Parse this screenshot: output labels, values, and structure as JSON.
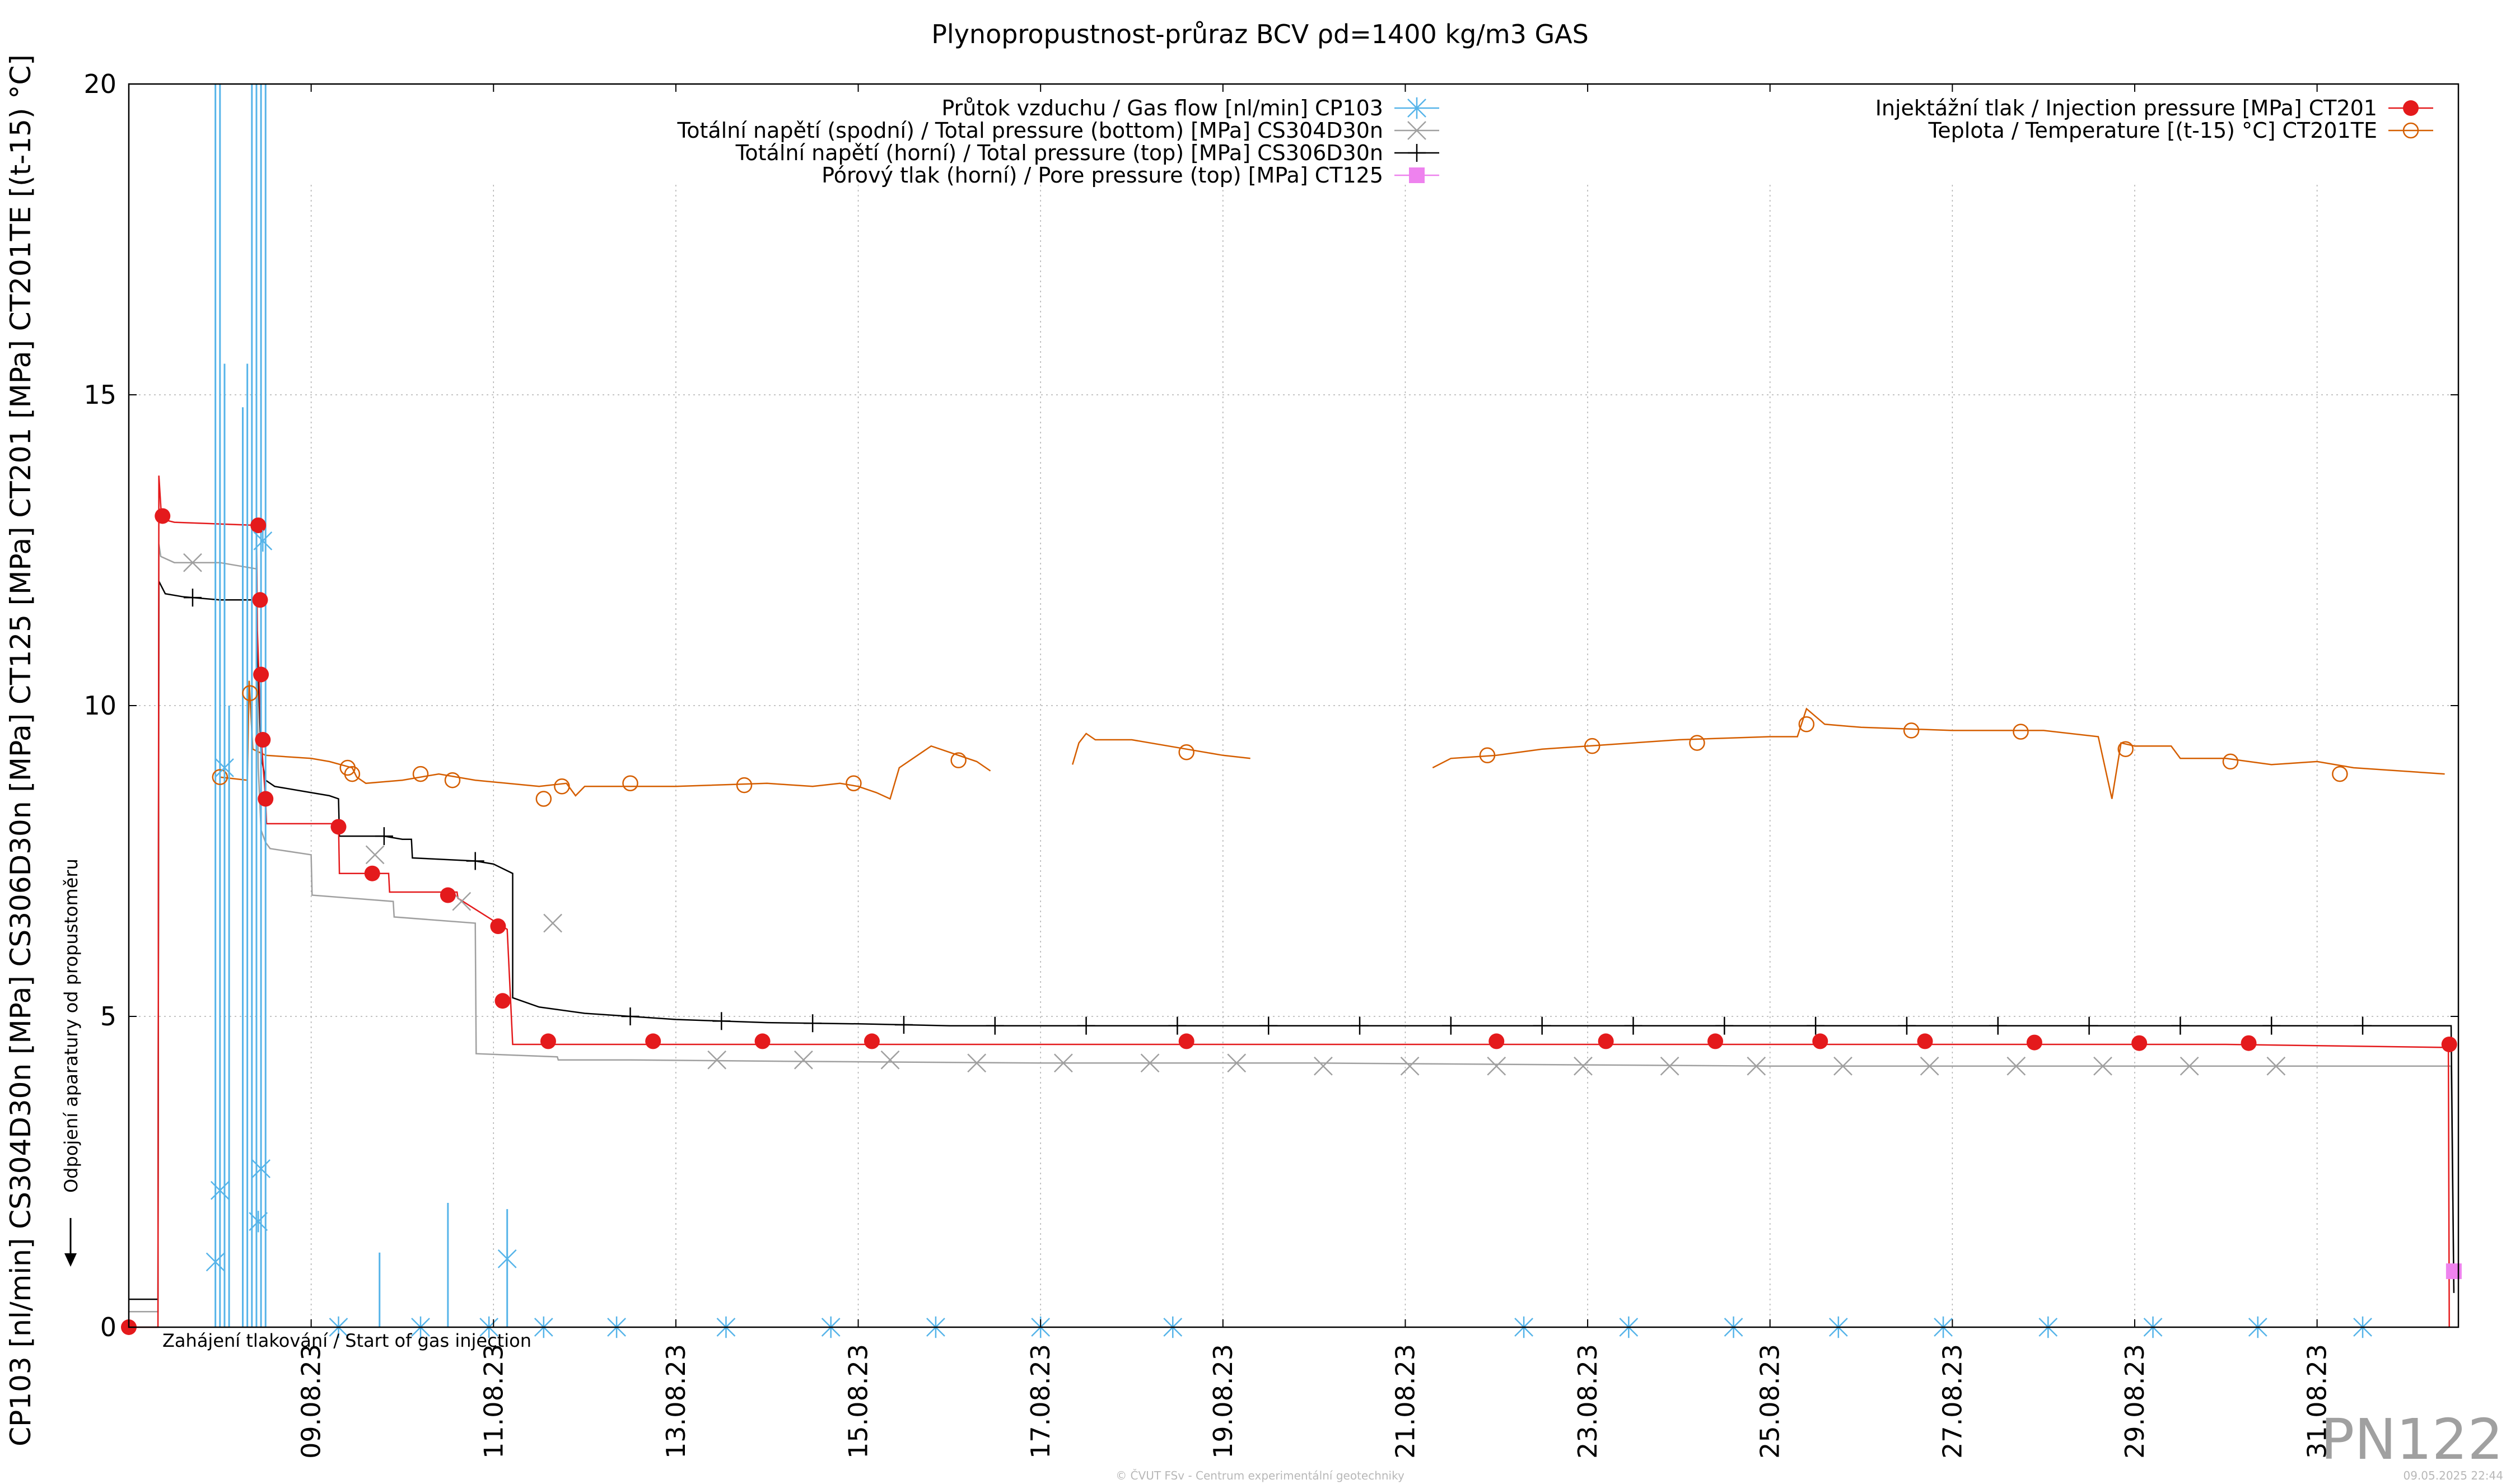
{
  "chart_data": {
    "type": "line",
    "title": "Plynopropustnost-průraz BCV ρd=1400 kg/m3 GAS",
    "ylabel": "CP103 [nl/min] CS304D30n [MPa] CS306D30n [MPa] CT125 [MPa] CT201 [MPa] CT201TE [(t-15) °C]",
    "ylim": [
      0,
      20
    ],
    "xlim": [
      7.0,
      32.55
    ],
    "yticks": [
      0,
      5,
      10,
      15,
      20
    ],
    "xticks": [
      {
        "label": "09.08.23",
        "day": 9
      },
      {
        "label": "11.08.23",
        "day": 11
      },
      {
        "label": "13.08.23",
        "day": 13
      },
      {
        "label": "15.08.23",
        "day": 15
      },
      {
        "label": "17.08.23",
        "day": 17
      },
      {
        "label": "19.08.23",
        "day": 19
      },
      {
        "label": "21.08.23",
        "day": 21
      },
      {
        "label": "23.08.23",
        "day": 23
      },
      {
        "label": "25.08.23",
        "day": 25
      },
      {
        "label": "27.08.23",
        "day": 27
      },
      {
        "label": "29.08.23",
        "day": 29
      },
      {
        "label": "31.08.23",
        "day": 31
      }
    ],
    "grid": true,
    "legend_left": [
      {
        "name": "Průtok vzduchu / Gas flow [nl/min] CP103",
        "color": "#56b4e9",
        "marker": "asterisk"
      },
      {
        "name": "Totální napětí (spodní) / Total pressure (bottom) [MPa] CS304D30n",
        "color": "#a0a0a0",
        "marker": "cross"
      },
      {
        "name": "Totální napětí (horní) / Total pressure (top) [MPa] CS306D30n",
        "color": "#000000",
        "marker": "plus"
      },
      {
        "name": "Pórový tlak (horní) / Pore pressure (top) [MPa] CT125",
        "color": "#ee82ee",
        "marker": "square"
      }
    ],
    "legend_right": [
      {
        "name": "Injektážní tlak / Injection pressure [MPa] CT201",
        "color": "#e41a1c",
        "marker": "filled-circle"
      },
      {
        "name": "Teplota / Temperature [(t-15) °C] CT201TE",
        "color": "#d55e00",
        "marker": "open-circle"
      }
    ],
    "annotations": {
      "vertical": "Odpojení aparatury od propustoměru",
      "bottom": "Zahájení tlakování / Start of gas injection"
    },
    "series": [
      {
        "id": "CT201TE",
        "name": "Teplota / Temperature [(t-15) °C] CT201TE",
        "color": "#d55e00",
        "x": [
          8.0,
          8.3,
          8.32,
          8.36,
          8.5,
          9.0,
          9.2,
          9.45,
          9.5,
          9.6,
          10.0,
          10.4,
          10.8,
          11.5,
          11.8,
          11.9,
          12.0,
          12.5,
          13.0,
          14.0,
          14.5,
          14.8,
          15.0,
          15.2,
          15.35,
          15.45,
          15.8,
          16.0,
          16.3,
          16.45
        ],
        "y": [
          8.85,
          8.8,
          10.4,
          9.3,
          9.2,
          9.15,
          9.1,
          9.0,
          8.85,
          8.75,
          8.8,
          8.9,
          8.8,
          8.7,
          8.75,
          8.55,
          8.7,
          8.7,
          8.7,
          8.75,
          8.7,
          8.75,
          8.7,
          8.6,
          8.5,
          9.0,
          9.35,
          9.25,
          9.1,
          8.95
        ],
        "markers": [
          [
            8.0,
            8.85
          ],
          [
            8.33,
            10.2
          ],
          [
            9.4,
            9.0
          ],
          [
            9.45,
            8.9
          ],
          [
            10.2,
            8.9
          ],
          [
            10.55,
            8.8
          ],
          [
            11.55,
            8.5
          ],
          [
            11.75,
            8.7
          ],
          [
            12.5,
            8.75
          ],
          [
            13.75,
            8.72
          ],
          [
            14.95,
            8.75
          ],
          [
            16.1,
            9.12
          ]
        ]
      },
      {
        "id": "CT201TE_b",
        "name": "",
        "color": "#d55e00",
        "x": [
          17.35,
          17.42,
          17.5,
          17.6,
          18.0,
          18.6,
          19.0,
          19.3
        ],
        "y": [
          9.05,
          9.4,
          9.55,
          9.45,
          9.45,
          9.3,
          9.2,
          9.15
        ],
        "markers": [
          [
            18.6,
            9.25
          ]
        ]
      },
      {
        "id": "CT201TE_c",
        "name": "",
        "color": "#d55e00",
        "x": [
          21.3,
          21.5,
          22.0,
          22.5,
          23.0,
          24.0,
          25.0,
          25.3,
          25.4,
          25.6,
          26.0,
          27.0,
          28.0,
          28.6,
          28.75,
          28.85,
          29.0,
          29.4,
          29.5,
          30.0,
          30.5,
          31.0,
          31.4,
          32.4
        ],
        "y": [
          9.0,
          9.15,
          9.2,
          9.3,
          9.35,
          9.45,
          9.5,
          9.5,
          9.95,
          9.7,
          9.65,
          9.6,
          9.6,
          9.5,
          8.5,
          9.4,
          9.35,
          9.35,
          9.15,
          9.15,
          9.05,
          9.1,
          9.0,
          8.9
        ],
        "markers": [
          [
            21.9,
            9.2
          ],
          [
            23.05,
            9.35
          ],
          [
            24.2,
            9.4
          ],
          [
            25.4,
            9.7
          ],
          [
            26.55,
            9.6
          ],
          [
            27.75,
            9.58
          ],
          [
            28.9,
            9.3
          ],
          [
            30.05,
            9.1
          ],
          [
            31.25,
            8.9
          ]
        ]
      },
      {
        "id": "CS304D30n",
        "name": "Totální napětí (spodní) / Total pressure (bottom) [MPa] CS304D30n",
        "color": "#a0a0a0",
        "x": [
          7.0,
          7.32,
          7.33,
          7.35,
          7.5,
          8.0,
          8.4,
          8.42,
          8.45,
          8.5,
          8.55,
          9.0,
          9.01,
          9.9,
          9.91,
          10.8,
          10.81,
          11.7,
          11.71,
          12.0,
          12.5,
          14.0,
          17.0,
          20.0,
          25.0,
          30.0,
          32.47,
          32.5
        ],
        "y": [
          0.25,
          0.25,
          12.6,
          12.4,
          12.3,
          12.3,
          12.2,
          9.0,
          8.0,
          7.8,
          7.7,
          7.6,
          6.95,
          6.85,
          6.6,
          6.5,
          4.4,
          4.35,
          4.3,
          4.3,
          4.3,
          4.28,
          4.25,
          4.25,
          4.2,
          4.2,
          4.2,
          0.6
        ],
        "markers": [
          [
            7.7,
            12.3
          ],
          [
            9.7,
            7.6
          ],
          [
            10.65,
            6.85
          ],
          [
            11.65,
            6.5
          ],
          [
            13.45,
            4.3
          ],
          [
            14.4,
            4.3
          ],
          [
            15.35,
            4.3
          ],
          [
            16.3,
            4.25
          ],
          [
            17.25,
            4.25
          ],
          [
            18.2,
            4.25
          ],
          [
            19.15,
            4.25
          ],
          [
            20.1,
            4.2
          ],
          [
            21.05,
            4.2
          ],
          [
            22.0,
            4.2
          ],
          [
            22.95,
            4.2
          ],
          [
            23.9,
            4.2
          ],
          [
            24.85,
            4.2
          ],
          [
            25.8,
            4.2
          ],
          [
            26.75,
            4.2
          ],
          [
            27.7,
            4.2
          ],
          [
            28.65,
            4.2
          ],
          [
            29.6,
            4.2
          ],
          [
            30.55,
            4.2
          ]
        ]
      },
      {
        "id": "CS306D30n",
        "name": "Totální napětí (horní) / Total pressure (top) [MPa] CS306D30n",
        "color": "#000000",
        "x": [
          7.0,
          7.32,
          7.33,
          7.4,
          7.6,
          8.0,
          8.4,
          8.42,
          8.45,
          8.5,
          8.6,
          9.0,
          9.2,
          9.3,
          9.31,
          9.8,
          10.0,
          10.1,
          10.11,
          10.8,
          11.0,
          11.21,
          11.21,
          11.5,
          12.0,
          13.0,
          14.0,
          15.0,
          16.0,
          18.0,
          20.0,
          25.0,
          30.0,
          32.47,
          32.5
        ],
        "y": [
          0.45,
          0.45,
          12.0,
          11.8,
          11.75,
          11.7,
          11.7,
          10.5,
          9.2,
          8.8,
          8.7,
          8.6,
          8.55,
          8.5,
          7.9,
          7.9,
          7.85,
          7.85,
          7.55,
          7.5,
          7.45,
          7.3,
          5.3,
          5.15,
          5.05,
          4.95,
          4.9,
          4.88,
          4.85,
          4.85,
          4.85,
          4.85,
          4.85,
          4.85,
          0.55
        ]
      },
      {
        "id": "CT201",
        "name": "Injektážní tlak / Injection pressure [MPa] CT201",
        "color": "#e41a1c",
        "x": [
          7.0,
          7.32,
          7.33,
          7.36,
          7.5,
          8.4,
          8.41,
          8.45,
          8.5,
          8.51,
          9.3,
          9.31,
          9.85,
          9.86,
          10.6,
          10.61,
          11.15,
          11.21,
          12.0,
          16.45,
          17.35,
          18.6,
          19.3,
          21.3,
          25.0,
          30.0,
          32.44,
          32.45
        ],
        "y": [
          0.0,
          0.0,
          13.7,
          13.0,
          12.95,
          12.9,
          11.2,
          9.5,
          8.5,
          8.1,
          8.1,
          7.3,
          7.3,
          7.0,
          7.0,
          6.9,
          6.4,
          4.55,
          4.55,
          4.55,
          4.55,
          4.55,
          4.55,
          4.55,
          4.55,
          4.55,
          4.5,
          0.0
        ],
        "markers": [
          [
            7.0,
            0.0
          ],
          [
            7.37,
            13.05
          ],
          [
            8.42,
            12.9
          ],
          [
            8.44,
            11.7
          ],
          [
            8.45,
            10.5
          ],
          [
            8.47,
            9.45
          ],
          [
            8.5,
            8.5
          ],
          [
            9.3,
            8.05
          ],
          [
            9.67,
            7.3
          ],
          [
            10.5,
            6.95
          ],
          [
            11.05,
            6.45
          ],
          [
            11.1,
            5.25
          ],
          [
            11.6,
            4.6
          ],
          [
            12.75,
            4.6
          ],
          [
            13.95,
            4.6
          ],
          [
            15.15,
            4.6
          ],
          [
            18.6,
            4.6
          ],
          [
            22.0,
            4.6
          ],
          [
            23.2,
            4.6
          ],
          [
            24.4,
            4.6
          ],
          [
            25.55,
            4.6
          ],
          [
            26.7,
            4.6
          ],
          [
            27.9,
            4.58
          ],
          [
            29.05,
            4.57
          ],
          [
            30.25,
            4.57
          ],
          [
            32.45,
            4.55
          ]
        ]
      },
      {
        "id": "CP103",
        "name": "Průtok vzduchu / Gas flow [nl/min] CP103",
        "color": "#56b4e9",
        "spikes": [
          [
            7.95,
            20.0
          ],
          [
            8.0,
            20.0
          ],
          [
            8.05,
            15.5
          ],
          [
            8.1,
            10.0
          ],
          [
            8.25,
            14.8
          ],
          [
            8.3,
            15.5
          ],
          [
            8.35,
            20.0
          ],
          [
            8.4,
            20.0
          ],
          [
            8.45,
            20.0
          ],
          [
            8.5,
            20.0
          ],
          [
            9.75,
            1.2
          ],
          [
            10.5,
            2.0
          ],
          [
            11.15,
            1.9
          ],
          [
            32.5,
            0.0
          ]
        ],
        "markers": [
          [
            7.95,
            1.05
          ],
          [
            8.0,
            2.2
          ],
          [
            8.05,
            9.0
          ],
          [
            8.42,
            1.7
          ],
          [
            8.45,
            2.55
          ],
          [
            8.47,
            12.65
          ],
          [
            9.3,
            0.0
          ],
          [
            10.2,
            0.0
          ],
          [
            10.95,
            0.0
          ],
          [
            11.15,
            1.1
          ],
          [
            11.55,
            0.0
          ],
          [
            12.35,
            0.0
          ],
          [
            13.55,
            0.0
          ],
          [
            14.7,
            0.0
          ],
          [
            15.85,
            0.0
          ],
          [
            17.0,
            0.0
          ],
          [
            18.45,
            0.0
          ],
          [
            22.3,
            0.0
          ],
          [
            23.45,
            0.0
          ],
          [
            24.6,
            0.0
          ],
          [
            25.75,
            0.0
          ],
          [
            26.9,
            0.0
          ],
          [
            28.05,
            0.0
          ],
          [
            29.2,
            0.0
          ],
          [
            30.35,
            0.0
          ],
          [
            31.5,
            0.0
          ]
        ]
      },
      {
        "id": "CT125",
        "name": "Pórový tlak (horní) / Pore pressure (top) [MPa] CT125",
        "color": "#ee82ee",
        "markers": [
          [
            32.5,
            0.9
          ]
        ]
      }
    ]
  },
  "watermark": "PN122",
  "footer_left": "© ČVUT FSv - Centrum experimentální geotechniky",
  "footer_right": "09.05.2025 22:44"
}
